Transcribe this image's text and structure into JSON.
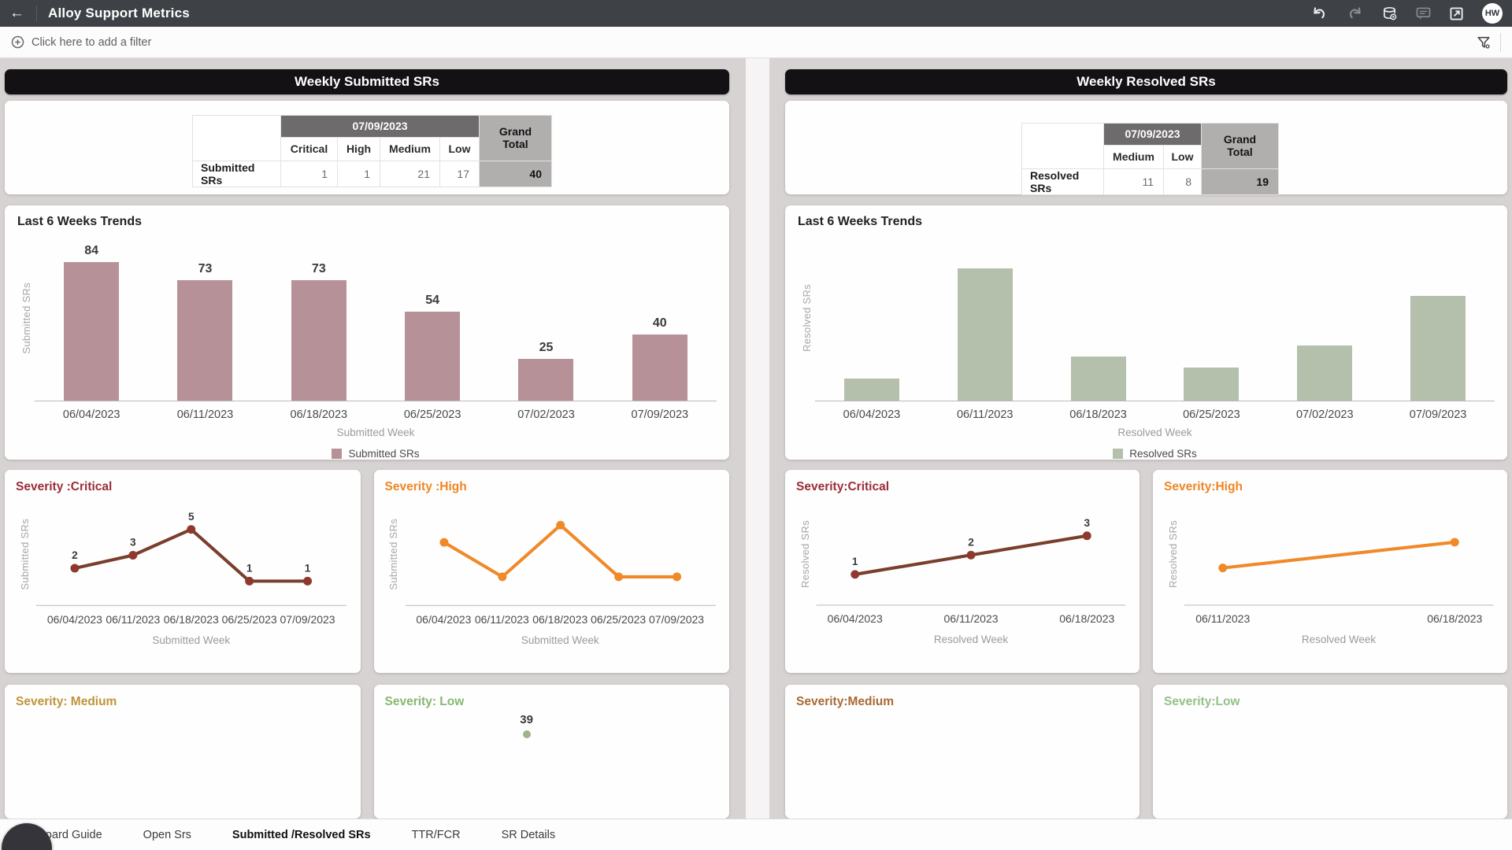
{
  "topbar": {
    "title": "Alloy Support Metrics",
    "back_icon": "←",
    "avatar_initials": "HW"
  },
  "filterbar": {
    "add_filter_label": "Click here to add a filter"
  },
  "left_panel": {
    "header": "Weekly Submitted SRs",
    "pivot": {
      "date_header": "07/09/2023",
      "grand_total_label": "Grand Total",
      "columns": [
        "Critical",
        "High",
        "Medium",
        "Low"
      ],
      "row_label": "Submitted SRs",
      "values": [
        "1",
        "1",
        "21",
        "17"
      ],
      "grand_total": "40"
    },
    "partial_cards": [
      {
        "title": "Severity: Medium",
        "title_color": "#c0943a"
      },
      {
        "title": "Severity: Low",
        "title_color": "#87b871",
        "peek_value": "39"
      }
    ]
  },
  "right_panel": {
    "header": "Weekly Resolved SRs",
    "pivot": {
      "date_header": "07/09/2023",
      "grand_total_label": "Grand Total",
      "columns": [
        "Medium",
        "Low"
      ],
      "row_label": "Resolved SRs",
      "values": [
        "11",
        "8"
      ],
      "grand_total": "19"
    },
    "partial_cards": [
      {
        "title": "Severity:Medium",
        "title_color": "#a96a33"
      },
      {
        "title": "Severity:Low",
        "title_color": "#94c187"
      }
    ]
  },
  "chart_data": [
    {
      "id": "weekly-submitted-trend",
      "type": "bar",
      "title": "Last 6 Weeks Trends",
      "categories": [
        "06/04/2023",
        "06/11/2023",
        "06/18/2023",
        "06/25/2023",
        "07/02/2023",
        "07/09/2023"
      ],
      "values": [
        84,
        73,
        73,
        54,
        25,
        40
      ],
      "show_value_labels": true,
      "xlabel": "Submitted Week",
      "ylabel": "Submitted SRs",
      "legend": "Submitted SRs",
      "color": "#b69298",
      "ylim": [
        0,
        100
      ]
    },
    {
      "id": "weekly-resolved-trend",
      "type": "bar",
      "title": "Last 6 Weeks Trends",
      "categories": [
        "06/04/2023",
        "06/11/2023",
        "06/18/2023",
        "06/25/2023",
        "07/02/2023",
        "07/09/2023"
      ],
      "values": [
        4,
        24,
        8,
        6,
        10,
        19
      ],
      "show_value_labels": false,
      "xlabel": "Resolved Week",
      "ylabel": "Resolved SRs",
      "legend": "Resolved SRs",
      "color": "#b4bfac",
      "ylim": [
        0,
        30
      ]
    },
    {
      "id": "submitted-severity-critical",
      "type": "line",
      "title": "Severity :Critical",
      "title_color": "#9b2c38",
      "categories": [
        "06/04/2023",
        "06/11/2023",
        "06/18/2023",
        "06/25/2023",
        "07/09/2023"
      ],
      "values": [
        2,
        3,
        5,
        1,
        1
      ],
      "show_value_labels": true,
      "xlabel": "Submitted Week",
      "ylabel": "Submitted SRs",
      "color": "#7a3e2c",
      "point_color": "#8f392e",
      "ylim": [
        0,
        6
      ]
    },
    {
      "id": "submitted-severity-high",
      "type": "line",
      "title": "Severity :High",
      "title_color": "#ee8625",
      "categories": [
        "06/04/2023",
        "06/11/2023",
        "06/18/2023",
        "06/25/2023",
        "07/09/2023"
      ],
      "values": [
        3,
        1,
        4,
        1,
        1
      ],
      "show_value_labels": false,
      "xlabel": "Submitted Week",
      "ylabel": "Submitted SRs",
      "color": "#f08928",
      "point_color": "#f08928",
      "ylim": [
        0,
        4.5
      ]
    },
    {
      "id": "resolved-severity-critical",
      "type": "line",
      "title": "Severity:Critical",
      "title_color": "#9b2c38",
      "categories": [
        "06/04/2023",
        "06/11/2023",
        "06/18/2023"
      ],
      "values": [
        1,
        2,
        3
      ],
      "show_value_labels": true,
      "xlabel": "Resolved Week",
      "ylabel": "Resolved SRs",
      "color": "#7a3e2c",
      "point_color": "#8f392e",
      "ylim": [
        0,
        4
      ]
    },
    {
      "id": "resolved-severity-high",
      "type": "line",
      "title": "Severity:High",
      "title_color": "#ee8625",
      "categories": [
        "06/11/2023",
        "06/18/2023"
      ],
      "values": [
        1,
        2
      ],
      "show_value_labels": false,
      "xlabel": "Resolved Week",
      "ylabel": "Resolved SRs",
      "color": "#f08928",
      "point_color": "#f08928",
      "ylim": [
        0,
        3
      ]
    }
  ],
  "tabbar": {
    "tabs": [
      {
        "label": "Dashboard Guide",
        "active": false
      },
      {
        "label": "Open Srs",
        "active": false
      },
      {
        "label": "Submitted /Resolved SRs",
        "active": true
      },
      {
        "label": "TTR/FCR",
        "active": false
      },
      {
        "label": "SR Details",
        "active": false
      }
    ]
  }
}
